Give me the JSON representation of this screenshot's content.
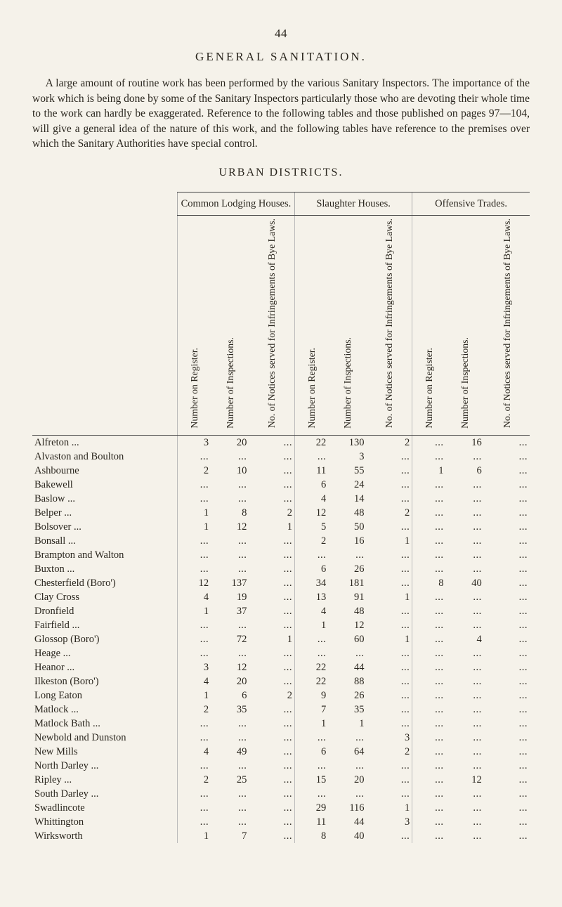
{
  "page_number": "44",
  "title": "GENERAL SANITATION.",
  "intro": "A large amount of routine work has been performed by the various Sanitary Inspectors. The importance of the work which is being done by some of the Sanitary Inspectors particularly those who are devoting their whole time to the work can hardly be exaggerated. Reference to the following tables and those published on pages 97—104, will give a general idea of the nature of this work, and the following tables have reference to the premises over which the Sanitary Authorities have special control.",
  "section_title": "URBAN DISTRICTS.",
  "group_headers": [
    "Common Lodging Houses.",
    "Slaughter Houses.",
    "Offensive Trades."
  ],
  "sub_headers": [
    "Number on Register.",
    "Number of Inspections.",
    "No. of Notices served for Infringements of Bye Laws.",
    "Number on Register.",
    "Number of Inspections.",
    "No. of Notices served for Infringements of Bye Laws.",
    "Number on Register.",
    "Number of Inspections.",
    "No. of Notices served for Infringements of Bye Laws."
  ],
  "rows": [
    {
      "place": "Alfreton ...",
      "v": [
        "3",
        "20",
        "...",
        "22",
        "130",
        "2",
        "...",
        "16",
        "..."
      ]
    },
    {
      "place": "Alvaston and Boulton",
      "v": [
        "...",
        "...",
        "...",
        "...",
        "3",
        "...",
        "...",
        "...",
        "..."
      ]
    },
    {
      "place": "Ashbourne",
      "v": [
        "2",
        "10",
        "...",
        "11",
        "55",
        "...",
        "1",
        "6",
        "..."
      ]
    },
    {
      "place": "Bakewell",
      "v": [
        "...",
        "...",
        "...",
        "6",
        "24",
        "...",
        "...",
        "...",
        "..."
      ]
    },
    {
      "place": "Baslow ...",
      "v": [
        "...",
        "...",
        "...",
        "4",
        "14",
        "...",
        "...",
        "...",
        "..."
      ]
    },
    {
      "place": "Belper ...",
      "v": [
        "1",
        "8",
        "2",
        "12",
        "48",
        "2",
        "...",
        "...",
        "..."
      ]
    },
    {
      "place": "Bolsover ...",
      "v": [
        "1",
        "12",
        "1",
        "5",
        "50",
        "...",
        "...",
        "...",
        "..."
      ]
    },
    {
      "place": "Bonsall ...",
      "v": [
        "...",
        "...",
        "...",
        "2",
        "16",
        "1",
        "...",
        "...",
        "..."
      ]
    },
    {
      "place": "Brampton and Walton",
      "v": [
        "...",
        "...",
        "...",
        "...",
        "...",
        "...",
        "...",
        "...",
        "..."
      ]
    },
    {
      "place": "Buxton ...",
      "v": [
        "...",
        "...",
        "...",
        "6",
        "26",
        "...",
        "...",
        "...",
        "..."
      ]
    },
    {
      "place": "Chesterfield (Boro')",
      "v": [
        "12",
        "137",
        "...",
        "34",
        "181",
        "...",
        "8",
        "40",
        "..."
      ]
    },
    {
      "place": "Clay Cross",
      "v": [
        "4",
        "19",
        "...",
        "13",
        "91",
        "1",
        "...",
        "...",
        "..."
      ]
    },
    {
      "place": "Dronfield",
      "v": [
        "1",
        "37",
        "...",
        "4",
        "48",
        "...",
        "...",
        "...",
        "..."
      ]
    },
    {
      "place": "Fairfield ...",
      "v": [
        "...",
        "...",
        "...",
        "1",
        "12",
        "...",
        "...",
        "...",
        "..."
      ]
    },
    {
      "place": "Glossop (Boro')",
      "v": [
        "...",
        "72",
        "1",
        "...",
        "60",
        "1",
        "...",
        "4",
        "..."
      ]
    },
    {
      "place": "Heage ...",
      "v": [
        "...",
        "...",
        "...",
        "...",
        "...",
        "...",
        "...",
        "...",
        "..."
      ]
    },
    {
      "place": "Heanor ...",
      "v": [
        "3",
        "12",
        "...",
        "22",
        "44",
        "...",
        "...",
        "...",
        "..."
      ]
    },
    {
      "place": "Ilkeston (Boro')",
      "v": [
        "4",
        "20",
        "...",
        "22",
        "88",
        "...",
        "...",
        "...",
        "..."
      ]
    },
    {
      "place": "Long Eaton",
      "v": [
        "1",
        "6",
        "2",
        "9",
        "26",
        "...",
        "...",
        "...",
        "..."
      ]
    },
    {
      "place": "Matlock ...",
      "v": [
        "2",
        "35",
        "...",
        "7",
        "35",
        "...",
        "...",
        "...",
        "..."
      ]
    },
    {
      "place": "Matlock Bath ...",
      "v": [
        "...",
        "...",
        "...",
        "1",
        "1",
        "...",
        "...",
        "...",
        "..."
      ]
    },
    {
      "place": "Newbold and Dunston",
      "v": [
        "...",
        "...",
        "...",
        "...",
        "...",
        "3",
        "...",
        "...",
        "..."
      ]
    },
    {
      "place": "New Mills",
      "v": [
        "4",
        "49",
        "...",
        "6",
        "64",
        "2",
        "...",
        "...",
        "..."
      ]
    },
    {
      "place": "North Darley ...",
      "v": [
        "...",
        "...",
        "...",
        "...",
        "...",
        "...",
        "...",
        "...",
        "..."
      ]
    },
    {
      "place": "Ripley ...",
      "v": [
        "2",
        "25",
        "...",
        "15",
        "20",
        "...",
        "...",
        "12",
        "..."
      ]
    },
    {
      "place": "South Darley ...",
      "v": [
        "...",
        "...",
        "...",
        "...",
        "...",
        "...",
        "...",
        "...",
        "..."
      ]
    },
    {
      "place": "Swadlincote",
      "v": [
        "...",
        "...",
        "...",
        "29",
        "116",
        "1",
        "...",
        "...",
        "..."
      ]
    },
    {
      "place": "Whittington",
      "v": [
        "...",
        "...",
        "...",
        "11",
        "44",
        "3",
        "...",
        "...",
        "..."
      ]
    },
    {
      "place": "Wirksworth",
      "v": [
        "1",
        "7",
        "...",
        "8",
        "40",
        "...",
        "...",
        "...",
        "..."
      ]
    }
  ]
}
